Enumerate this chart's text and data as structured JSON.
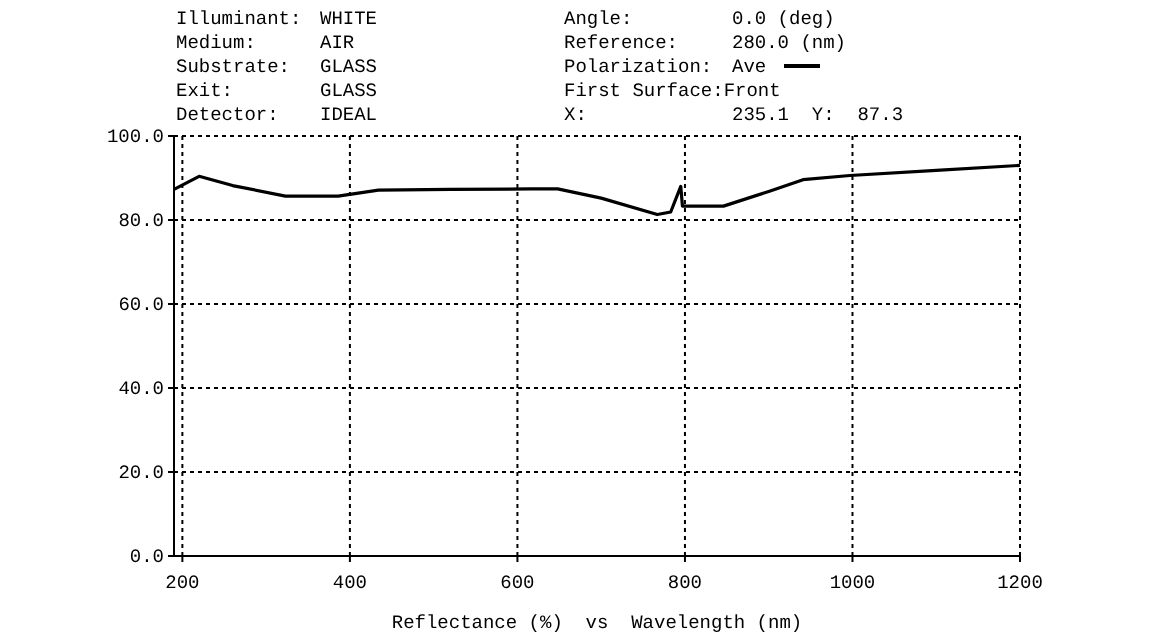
{
  "chart_data": {
    "type": "line",
    "xlabel": "Reflectance (%)  vs  Wavelength (nm)",
    "annotations": [
      "Illuminant: WHITE",
      "Medium: AIR",
      "Substrate: GLASS",
      "Exit: GLASS",
      "Detector: IDEAL",
      "Angle: 0.0 (deg)",
      "Reference: 280.0 (nm)",
      "First Surface:Front",
      "X:  235.1  Y:  87.3"
    ],
    "legend_title": "Polarization:",
    "legend": "top right",
    "grid": true,
    "line_style": "solid",
    "marker": "none",
    "xlim": [
      190,
      1200
    ],
    "xticks": [
      200,
      400,
      600,
      800,
      1000,
      1200
    ],
    "ylim": [
      0,
      100
    ],
    "yticks": [
      {
        "value": 0,
        "label": "0.0"
      },
      {
        "value": 20,
        "label": "20.0"
      },
      {
        "value": 40,
        "label": "40.0"
      },
      {
        "value": 60,
        "label": "60.0"
      },
      {
        "value": 80,
        "label": "80.0"
      },
      {
        "value": 100,
        "label": "100.0"
      }
    ],
    "series": [
      {
        "name": "Ave",
        "color": "#000000",
        "x": [
          190,
          220,
          260,
          323,
          386,
          434,
          520,
          616,
          648,
          700,
          767,
          783,
          795,
          797,
          846,
          900,
          941,
          997,
          1100,
          1200
        ],
        "values": [
          87.3,
          90.4,
          88.2,
          85.7,
          85.7,
          87.1,
          87.3,
          87.4,
          87.4,
          85.2,
          81.3,
          81.9,
          88.0,
          83.3,
          83.3,
          86.8,
          89.6,
          90.6,
          91.8,
          93.0
        ]
      }
    ]
  }
}
